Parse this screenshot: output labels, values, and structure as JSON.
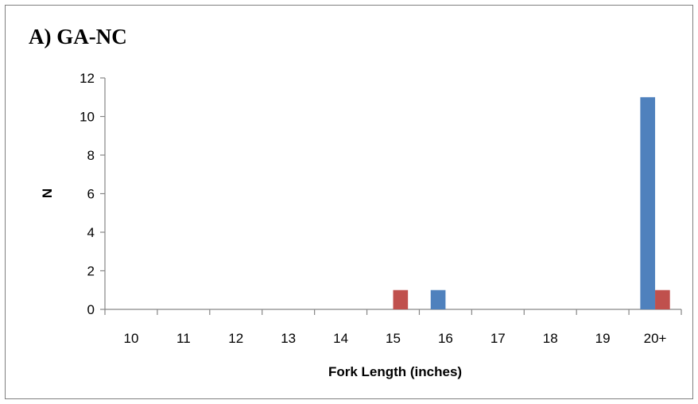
{
  "chart_data": {
    "type": "bar",
    "title": "A) GA-NC",
    "xlabel": "Fork Length (inches)",
    "ylabel": "N",
    "categories": [
      "10",
      "11",
      "12",
      "13",
      "14",
      "15",
      "16",
      "17",
      "18",
      "19",
      "20+"
    ],
    "series": [
      {
        "name": "",
        "color": "#4f81bd",
        "values": [
          0,
          0,
          0,
          0,
          0,
          0,
          1,
          0,
          0,
          0,
          11
        ]
      },
      {
        "name": "",
        "color": "#c0504d",
        "values": [
          0,
          0,
          0,
          0,
          0,
          1,
          0,
          0,
          0,
          0,
          1
        ]
      }
    ],
    "ylim": [
      0,
      12
    ],
    "yticks": [
      0,
      2,
      4,
      6,
      8,
      10,
      12
    ],
    "grid": false,
    "legend": "none"
  }
}
